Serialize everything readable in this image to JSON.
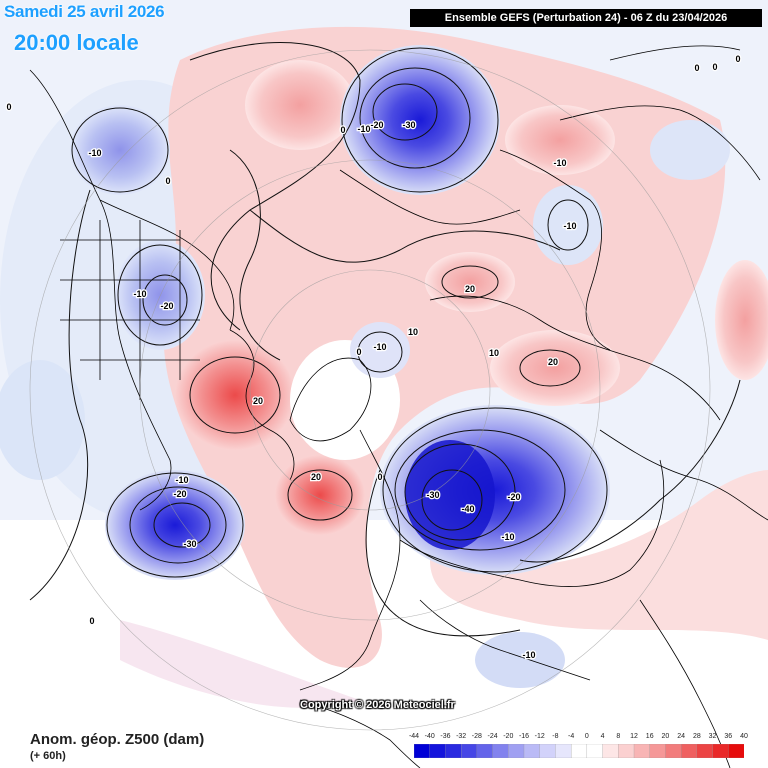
{
  "header": {
    "date": "Samedi 25 avril 2026",
    "local_time": "20:00 locale",
    "model_info": "Ensemble GEFS  (Perturbation 24)  -  06 Z du 23/04/2026"
  },
  "footer": {
    "copyright": "Copyright © 2026 Meteociel.fr",
    "parameter": "Anom. géop. Z500 (dam)",
    "lead": "(+ 60h)"
  },
  "colors": {
    "strong_blue": "#2d2de6",
    "light_blue": "#cfd8f5",
    "light_red": "#f7c9c9",
    "strong_red": "#ee5a5a"
  },
  "legend": {
    "ticks": [
      "-44",
      "-40",
      "-36",
      "-32",
      "-28",
      "-24",
      "-20",
      "-16",
      "-12",
      "-8",
      "-4",
      "0",
      "4",
      "8",
      "12",
      "16",
      "20",
      "24",
      "28",
      "32",
      "36",
      "40"
    ],
    "swatches": [
      "#0000d6",
      "#1414dc",
      "#2a2ae0",
      "#4646e6",
      "#6464ea",
      "#8282ee",
      "#a0a0f2",
      "#babaf6",
      "#d2d2fa",
      "#e6e6fc",
      "#ffffff",
      "#ffffff",
      "#fde6e6",
      "#fbd0d0",
      "#f8b4b4",
      "#f59898",
      "#f27c7c",
      "#ef6060",
      "#ec4444",
      "#e92828",
      "#e60c0c"
    ]
  },
  "contour_labels": [
    {
      "text": "-10",
      "name": "label-alaska-neg10"
    },
    {
      "text": "-10",
      "name": "label-canada-neg10"
    },
    {
      "text": "-20",
      "name": "label-canada-neg20"
    },
    {
      "text": "-10",
      "name": "label-atlantic-neg10"
    },
    {
      "text": "-20",
      "name": "label-atlantic-neg20"
    },
    {
      "text": "-30",
      "name": "label-atlantic-neg30"
    },
    {
      "text": "-10",
      "name": "label-siberia-neg10"
    },
    {
      "text": "-20",
      "name": "label-siberia-neg20"
    },
    {
      "text": "-30",
      "name": "label-siberia-neg30"
    },
    {
      "text": "-30",
      "name": "label-europe-neg30"
    },
    {
      "text": "-40",
      "name": "label-europe-neg40"
    },
    {
      "text": "-20",
      "name": "label-europe-neg20"
    },
    {
      "text": "-10",
      "name": "label-europe-neg10"
    },
    {
      "text": "-10",
      "name": "label-pole-neg10"
    },
    {
      "text": "-10",
      "name": "label-pacific-neg10"
    },
    {
      "text": "-10",
      "name": "label-china-neg10"
    },
    {
      "text": "-10",
      "name": "label-africa-neg10"
    },
    {
      "text": "20",
      "name": "label-greenland-20"
    },
    {
      "text": "20",
      "name": "label-atlantic-20"
    },
    {
      "text": "20",
      "name": "label-arctic-20"
    },
    {
      "text": "20",
      "name": "label-asia-20"
    },
    {
      "text": "10",
      "name": "label-pole-10"
    },
    {
      "text": "10",
      "name": "label-arctic-10"
    },
    {
      "text": "0",
      "name": "label-zero-a"
    },
    {
      "text": "0",
      "name": "label-zero-b"
    },
    {
      "text": "0",
      "name": "label-zero-c"
    },
    {
      "text": "0",
      "name": "label-zero-d"
    },
    {
      "text": "0",
      "name": "label-zero-e"
    },
    {
      "text": "0",
      "name": "label-zero-f"
    },
    {
      "text": "0",
      "name": "label-zero-g"
    },
    {
      "text": "0",
      "name": "label-zero-h"
    },
    {
      "text": "0",
      "name": "label-zero-i"
    }
  ]
}
